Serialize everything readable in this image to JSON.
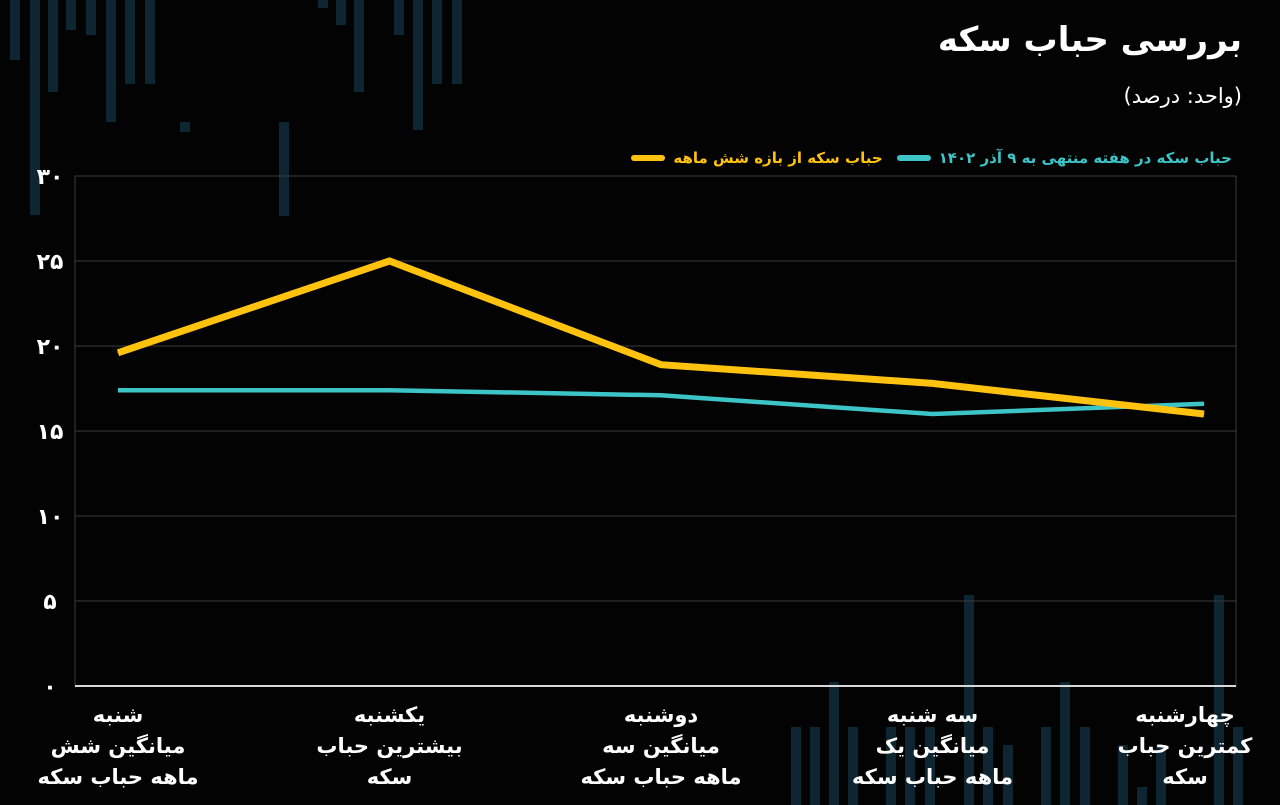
{
  "title": "بررسی حباب سکه",
  "subtitle": "(واحد: درصد)",
  "colors": {
    "background": "#030303",
    "grid": "#3b3b3b",
    "axis": "#d8d8d8",
    "deco": "#0d2631"
  },
  "legend": [
    {
      "label": "حباب سکه از بازه شش ماهه",
      "color": "#ffc20e"
    },
    {
      "label": "حباب سکه  در هفته  منتهی به ۹ آذر  ۱۴۰۲",
      "color": "#3cc4c6"
    }
  ],
  "chart_data": {
    "type": "line",
    "categories": [
      [
        "شنبه",
        "میانگین شش",
        "ماهه حباب سکه"
      ],
      [
        "یکشنبه",
        "بیشترین حباب",
        "سکه"
      ],
      [
        "دوشنبه",
        "میانگین سه",
        "ماهه حباب سکه"
      ],
      [
        "سه شنبه",
        "میانگین یک",
        "ماهه حباب سکه"
      ],
      [
        "چهارشنبه",
        "کمترین حباب",
        "سکه"
      ]
    ],
    "series": [
      {
        "name": "حباب سکه از بازه شش ماهه",
        "color": "#ffc20e",
        "values": [
          19.6,
          25.0,
          18.9,
          17.8,
          16.0
        ]
      },
      {
        "name": "حباب سکه  در هفته  منتهی به ۹ آذر  ۱۴۰۲",
        "color": "#3cc4c6",
        "values": [
          17.4,
          17.4,
          17.1,
          16.0,
          16.6
        ]
      }
    ],
    "ylim": [
      0,
      30
    ],
    "yticks": [
      0,
      5,
      10,
      15,
      20,
      25,
      30
    ],
    "ytick_labels": [
      "۰",
      "۵",
      "۱۰",
      "۱۵",
      "۲۰",
      "۲۵",
      "۳۰"
    ],
    "xlabel": "",
    "ylabel": "",
    "grid": true,
    "legend_position": "top-right"
  }
}
